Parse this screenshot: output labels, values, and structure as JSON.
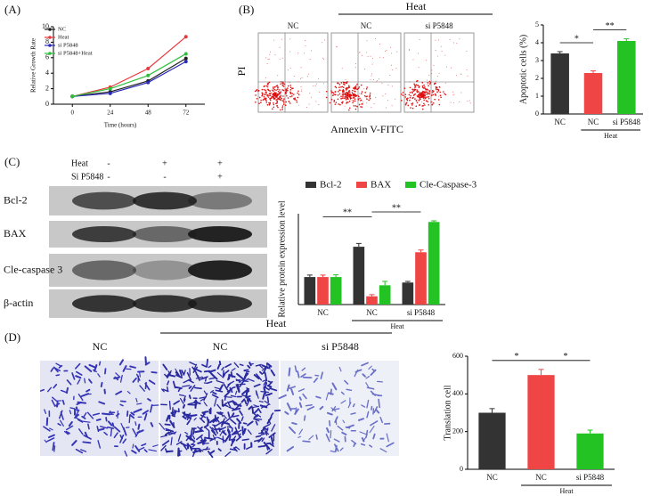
{
  "chart_data": [
    {
      "type": "line",
      "panel": "(A)",
      "x": [
        0,
        24,
        48,
        72
      ],
      "xlim": [
        -12,
        84
      ],
      "xticks": [
        0,
        24,
        48,
        72
      ],
      "ylim": [
        0,
        10
      ],
      "yticks": [
        0,
        2,
        4,
        6,
        8,
        10
      ],
      "xlabel": "Time (hours)",
      "ylabel": "Relative Growth Rate",
      "legend": "upper left",
      "series": [
        {
          "name": "NC",
          "color": "#222222",
          "values": [
            1,
            1.6,
            3.0,
            5.9
          ]
        },
        {
          "name": "Heat",
          "color": "#e8383d",
          "values": [
            1,
            2.2,
            4.6,
            8.7
          ]
        },
        {
          "name": "si P5848",
          "color": "#2a2ab8",
          "values": [
            1,
            1.4,
            2.8,
            5.5
          ]
        },
        {
          "name": "si P5848+Heat",
          "color": "#2fbf3a",
          "values": [
            1,
            2.0,
            3.7,
            6.5
          ]
        }
      ]
    },
    {
      "type": "bar",
      "panel": "(B)",
      "categories": [
        "NC",
        "NC",
        "si P5848"
      ],
      "values": [
        3.4,
        2.3,
        4.1
      ],
      "errors": [
        0.1,
        0.12,
        0.12
      ],
      "colors": [
        "#333333",
        "#f04545",
        "#22c322"
      ],
      "ylim": [
        0,
        5
      ],
      "yticks": [
        0,
        1,
        2,
        3,
        4,
        5
      ],
      "ylabel": "Apoptotic cells (%)",
      "group_label": "Heat",
      "significance": [
        "*",
        "**"
      ]
    },
    {
      "type": "bar",
      "panel": "(C)",
      "categories": [
        "NC",
        "NC",
        "si P5848"
      ],
      "ylim": [
        0,
        3.3
      ],
      "ylabel": "Relative protein expression level",
      "group_label": "Heat",
      "significance": [
        "**",
        "**"
      ],
      "legend": "top",
      "series": [
        {
          "name": "Bcl-2",
          "color": "#333333",
          "values": [
            1,
            2.1,
            0.8
          ],
          "errors": [
            0.07,
            0.12,
            0.04
          ]
        },
        {
          "name": "BAX",
          "color": "#f04545",
          "values": [
            1,
            0.3,
            1.9
          ],
          "errors": [
            0.07,
            0.06,
            0.08
          ]
        },
        {
          "name": "Cle-Caspase-3",
          "color": "#22c322",
          "values": [
            1,
            0.7,
            3.0
          ],
          "errors": [
            0.08,
            0.14,
            0.04
          ]
        }
      ]
    },
    {
      "type": "bar",
      "panel": "(D)",
      "categories": [
        "NC",
        "NC",
        "si P5848"
      ],
      "values": [
        300,
        500,
        190
      ],
      "errors": [
        22,
        30,
        18
      ],
      "colors": [
        "#333333",
        "#f04545",
        "#22c322"
      ],
      "ylim": [
        0,
        600
      ],
      "yticks": [
        0,
        200,
        400,
        600
      ],
      "ylabel": "Translation cell",
      "group_label": "Heat",
      "significance": [
        "*",
        "*"
      ]
    }
  ],
  "figure": {
    "flow": {
      "treatment": "Heat",
      "columns": [
        "NC",
        "NC",
        "si P5848"
      ],
      "ylabel": "PI",
      "xlabel": "Annexin V-FITC"
    },
    "blot": {
      "conditions": [
        "Heat",
        "Si P5848"
      ],
      "signs": [
        [
          "-",
          "+",
          "+"
        ],
        [
          "-",
          "-",
          "+"
        ]
      ],
      "bands": [
        "Bcl-2",
        "BAX",
        "Cle-caspase 3",
        "β-actin"
      ]
    },
    "micro": {
      "treatment": "Heat",
      "columns": [
        "NC",
        "NC",
        "si P5848"
      ]
    }
  }
}
